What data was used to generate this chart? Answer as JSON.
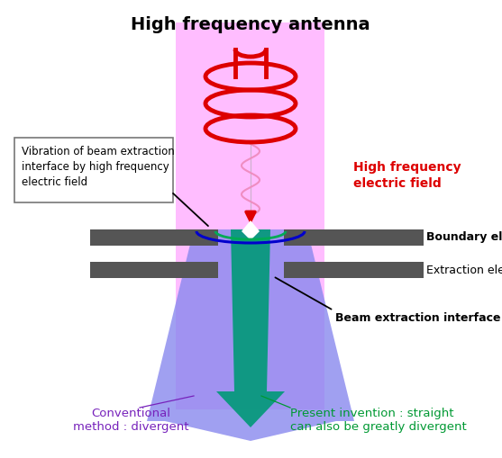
{
  "title": "High frequency antenna",
  "title_fontsize": 14,
  "title_fontweight": "bold",
  "bg_pink": "#FF88FF",
  "electrode_color": "#555555",
  "antenna_color": "#DD0000",
  "blue_arrow_color": "#8888EE",
  "teal_fill_color": "#009977",
  "wave_color": "#EE88BB",
  "blue_border_color": "#0000CC",
  "green_arc_color": "#00AA55",
  "label_boundary": "Boundary electrode",
  "label_extraction": "Extraction electrode",
  "label_interface": "Beam extraction interface",
  "label_conventional": "Conventional\nmethod : divergent",
  "label_present": "Present invention : straight\ncan also be greatly divergent",
  "label_hf_field": "High frequency\nelectric field",
  "label_vibration": "Vibration of beam extraction\ninterface by high frequency\nelectric field",
  "conventional_color": "#7722BB",
  "present_color": "#009933",
  "hf_field_color": "#DD0000",
  "fig_width": 5.57,
  "fig_height": 5.09,
  "dpi": 100
}
